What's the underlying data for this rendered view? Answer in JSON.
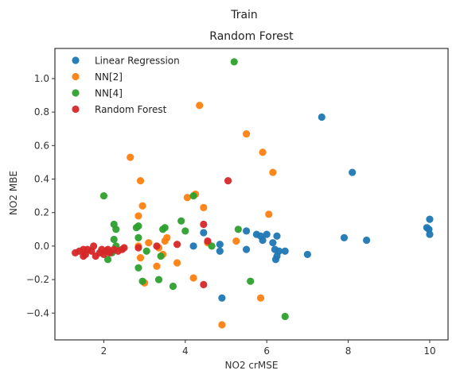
{
  "chart_data": {
    "type": "scatter",
    "suptitle": "Train",
    "title": "Random Forest",
    "xlabel": "NO2 crMSE",
    "ylabel": "NO2 MBE",
    "xlim": [
      0.8,
      10.45
    ],
    "ylim": [
      -0.56,
      1.18
    ],
    "xticks": [
      2,
      4,
      6,
      8,
      10
    ],
    "yticks": [
      -0.4,
      -0.2,
      0.0,
      0.2,
      0.4,
      0.6,
      0.8,
      1.0
    ],
    "xtick_labels": [
      "2",
      "4",
      "6",
      "8",
      "10"
    ],
    "ytick_labels": [
      "−0.4",
      "−0.2",
      "0.0",
      "0.2",
      "0.4",
      "0.6",
      "0.8",
      "1.0"
    ],
    "grid": false,
    "legend_position": "top-left",
    "series": [
      {
        "name": "Linear Regression",
        "color": "#1f77b4",
        "points": [
          [
            7.35,
            0.77
          ],
          [
            8.1,
            0.44
          ],
          [
            10.0,
            0.16
          ],
          [
            9.93,
            0.11
          ],
          [
            9.98,
            0.1
          ],
          [
            10.0,
            0.07
          ],
          [
            7.9,
            0.05
          ],
          [
            8.45,
            0.035
          ],
          [
            5.5,
            0.09
          ],
          [
            5.75,
            0.07
          ],
          [
            5.85,
            0.06
          ],
          [
            6.0,
            0.07
          ],
          [
            5.9,
            0.035
          ],
          [
            6.15,
            0.02
          ],
          [
            6.25,
            0.06
          ],
          [
            6.2,
            -0.02
          ],
          [
            6.3,
            -0.03
          ],
          [
            6.45,
            -0.03
          ],
          [
            6.25,
            -0.06
          ],
          [
            6.22,
            -0.08
          ],
          [
            7.0,
            -0.05
          ],
          [
            5.5,
            -0.02
          ],
          [
            4.85,
            0.01
          ],
          [
            4.85,
            -0.03
          ],
          [
            4.45,
            0.08
          ],
          [
            4.2,
            0.0
          ],
          [
            4.9,
            -0.31
          ]
        ]
      },
      {
        "name": "NN[2]",
        "color": "#ff7f0e",
        "points": [
          [
            4.35,
            0.84
          ],
          [
            5.5,
            0.67
          ],
          [
            5.9,
            0.56
          ],
          [
            6.15,
            0.44
          ],
          [
            2.65,
            0.53
          ],
          [
            2.9,
            0.39
          ],
          [
            4.25,
            0.31
          ],
          [
            4.05,
            0.29
          ],
          [
            2.95,
            0.24
          ],
          [
            4.45,
            0.23
          ],
          [
            2.85,
            0.18
          ],
          [
            6.05,
            0.19
          ],
          [
            3.55,
            0.05
          ],
          [
            3.5,
            0.03
          ],
          [
            5.25,
            0.03
          ],
          [
            2.85,
            0.0
          ],
          [
            3.1,
            0.02
          ],
          [
            3.35,
            -0.01
          ],
          [
            3.45,
            -0.05
          ],
          [
            2.9,
            -0.07
          ],
          [
            3.8,
            -0.1
          ],
          [
            3.3,
            -0.12
          ],
          [
            4.2,
            -0.19
          ],
          [
            3.0,
            -0.22
          ],
          [
            4.55,
            0.02
          ],
          [
            5.85,
            -0.31
          ],
          [
            4.9,
            -0.47
          ]
        ]
      },
      {
        "name": "NN[4]",
        "color": "#2ca02c",
        "points": [
          [
            5.2,
            1.1
          ],
          [
            2.0,
            0.3
          ],
          [
            4.2,
            0.3
          ],
          [
            2.25,
            0.13
          ],
          [
            2.3,
            0.1
          ],
          [
            2.85,
            0.12
          ],
          [
            2.8,
            0.11
          ],
          [
            3.5,
            0.11
          ],
          [
            3.45,
            0.1
          ],
          [
            3.9,
            0.15
          ],
          [
            4.0,
            0.09
          ],
          [
            5.3,
            0.1
          ],
          [
            2.25,
            0.04
          ],
          [
            2.85,
            0.05
          ],
          [
            2.3,
            0.0
          ],
          [
            2.2,
            -0.04
          ],
          [
            2.1,
            -0.08
          ],
          [
            3.05,
            -0.03
          ],
          [
            3.4,
            -0.06
          ],
          [
            4.65,
            0.0
          ],
          [
            2.85,
            -0.13
          ],
          [
            2.95,
            -0.21
          ],
          [
            3.35,
            -0.2
          ],
          [
            3.7,
            -0.24
          ],
          [
            5.6,
            -0.21
          ],
          [
            6.45,
            -0.42
          ]
        ]
      },
      {
        "name": "Random Forest",
        "color": "#d62728",
        "points": [
          [
            5.05,
            0.39
          ],
          [
            4.45,
            0.13
          ],
          [
            1.3,
            -0.04
          ],
          [
            1.4,
            -0.03
          ],
          [
            1.5,
            -0.02
          ],
          [
            1.55,
            -0.05
          ],
          [
            1.6,
            -0.02
          ],
          [
            1.7,
            -0.03
          ],
          [
            1.75,
            0.0
          ],
          [
            1.8,
            -0.06
          ],
          [
            1.9,
            -0.04
          ],
          [
            1.95,
            -0.02
          ],
          [
            2.0,
            -0.05
          ],
          [
            2.05,
            -0.03
          ],
          [
            2.1,
            -0.02
          ],
          [
            2.15,
            -0.04
          ],
          [
            2.25,
            -0.02
          ],
          [
            2.35,
            -0.03
          ],
          [
            2.45,
            -0.02
          ],
          [
            2.5,
            -0.01
          ],
          [
            1.5,
            -0.06
          ],
          [
            2.85,
            -0.01
          ],
          [
            3.3,
            0.0
          ],
          [
            3.8,
            0.01
          ],
          [
            4.55,
            0.03
          ],
          [
            4.45,
            -0.23
          ]
        ]
      }
    ]
  }
}
